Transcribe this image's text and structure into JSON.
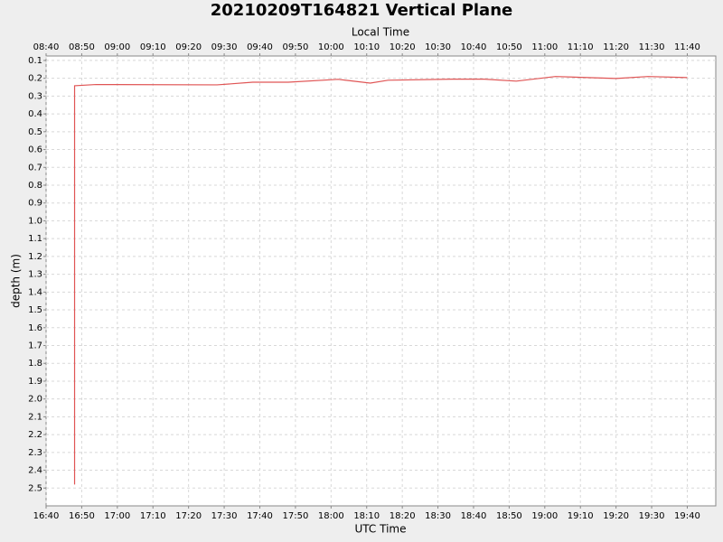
{
  "chart_data": {
    "type": "line",
    "title": "20210209T164821 Vertical Plane",
    "xlabel": "UTC Time",
    "x2label": "Local Time",
    "ylabel": "depth (m)",
    "x": [
      "16:48",
      "16:48",
      "16:54",
      "17:28",
      "17:38",
      "17:48",
      "18:02",
      "18:11",
      "18:16",
      "18:34",
      "18:43",
      "18:52",
      "19:03",
      "19:20",
      "19:29",
      "19:40"
    ],
    "series": [
      {
        "name": "depth",
        "color": "#e05555",
        "values": [
          2.48,
          0.242,
          0.235,
          0.237,
          0.222,
          0.222,
          0.206,
          0.227,
          0.211,
          0.205,
          0.205,
          0.216,
          0.19,
          0.201,
          0.19,
          0.196
        ]
      }
    ],
    "xlim": [
      "16:40",
      "19:48"
    ],
    "xticks": [
      "16:40",
      "16:50",
      "17:00",
      "17:10",
      "17:20",
      "17:30",
      "17:40",
      "17:50",
      "18:00",
      "18:10",
      "18:20",
      "18:30",
      "18:40",
      "18:50",
      "19:00",
      "19:10",
      "19:20",
      "19:30",
      "19:40"
    ],
    "x2ticks": [
      {
        "value": "16:40",
        "label": "08:40"
      },
      {
        "value": "16:50",
        "label": "08:50"
      },
      {
        "value": "17:00",
        "label": "09:00"
      },
      {
        "value": "17:10",
        "label": "09:10"
      },
      {
        "value": "17:20",
        "label": "09:20"
      },
      {
        "value": "17:30",
        "label": "09:30"
      },
      {
        "value": "17:40",
        "label": "09:40"
      },
      {
        "value": "17:50",
        "label": "09:50"
      },
      {
        "value": "18:00",
        "label": "10:00"
      },
      {
        "value": "18:10",
        "label": "10:10"
      },
      {
        "value": "18:20",
        "label": "10:20"
      },
      {
        "value": "18:30",
        "label": "10:30"
      },
      {
        "value": "18:40",
        "label": "10:40"
      },
      {
        "value": "18:50",
        "label": "10:50"
      },
      {
        "value": "19:00",
        "label": "11:00"
      },
      {
        "value": "19:10",
        "label": "11:10"
      },
      {
        "value": "19:20",
        "label": "11:20"
      },
      {
        "value": "19:30",
        "label": "11:30"
      },
      {
        "value": "19:40",
        "label": "11:40"
      }
    ],
    "ylim": [
      0.075,
      2.6
    ],
    "y_inverted": true,
    "yticks": [
      0.1,
      0.2,
      0.3,
      0.4,
      0.5,
      0.6,
      0.7,
      0.8,
      0.9,
      {
        "value": 1,
        "label": "1.0"
      },
      1.1,
      1.2,
      1.3,
      1.4,
      1.5,
      1.6,
      1.7,
      1.8,
      1.9,
      {
        "value": 2,
        "label": "2.0"
      },
      2.1,
      2.2,
      2.3,
      2.4,
      2.5
    ],
    "grid": true
  }
}
